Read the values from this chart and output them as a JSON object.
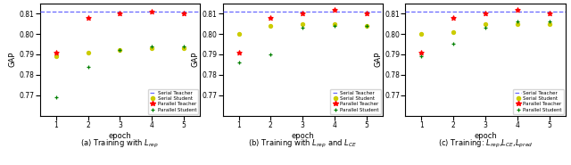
{
  "epochs": [
    1,
    2,
    3,
    4,
    5
  ],
  "serial_teacher_val": 0.811,
  "subplots": [
    {
      "title": "(a) Training with $L_{rep}$",
      "serial_student": [
        0.789,
        0.791,
        0.792,
        0.793,
        0.793
      ],
      "parallel_teacher": [
        0.791,
        0.808,
        0.81,
        0.811,
        0.81
      ],
      "parallel_student": [
        0.769,
        0.784,
        0.792,
        0.794,
        0.794
      ]
    },
    {
      "title": "(b) Training with $L_{rep}$ and $L_{CE}$",
      "serial_student": [
        0.8,
        0.804,
        0.805,
        0.805,
        0.804
      ],
      "parallel_teacher": [
        0.791,
        0.808,
        0.81,
        0.812,
        0.81
      ],
      "parallel_student": [
        0.786,
        0.79,
        0.803,
        0.804,
        0.804
      ]
    },
    {
      "title": "(c) Training: $L_{rep}$,$L_{CE}$,$L_{pred}$",
      "serial_student": [
        0.8,
        0.801,
        0.805,
        0.805,
        0.805
      ],
      "parallel_teacher": [
        0.791,
        0.808,
        0.81,
        0.812,
        0.81
      ],
      "parallel_student": [
        0.789,
        0.795,
        0.803,
        0.806,
        0.806
      ]
    }
  ],
  "ylim": [
    0.76,
    0.815
  ],
  "yticks": [
    0.77,
    0.78,
    0.79,
    0.8,
    0.81
  ],
  "serial_teacher_color": "#6666ff",
  "serial_student_color": "#cccc00",
  "parallel_teacher_color": "red",
  "parallel_student_color": "green",
  "legend_labels": [
    "Serial Teacher",
    "Serial Student",
    "Parallel Teacher",
    "Parallel Student"
  ]
}
